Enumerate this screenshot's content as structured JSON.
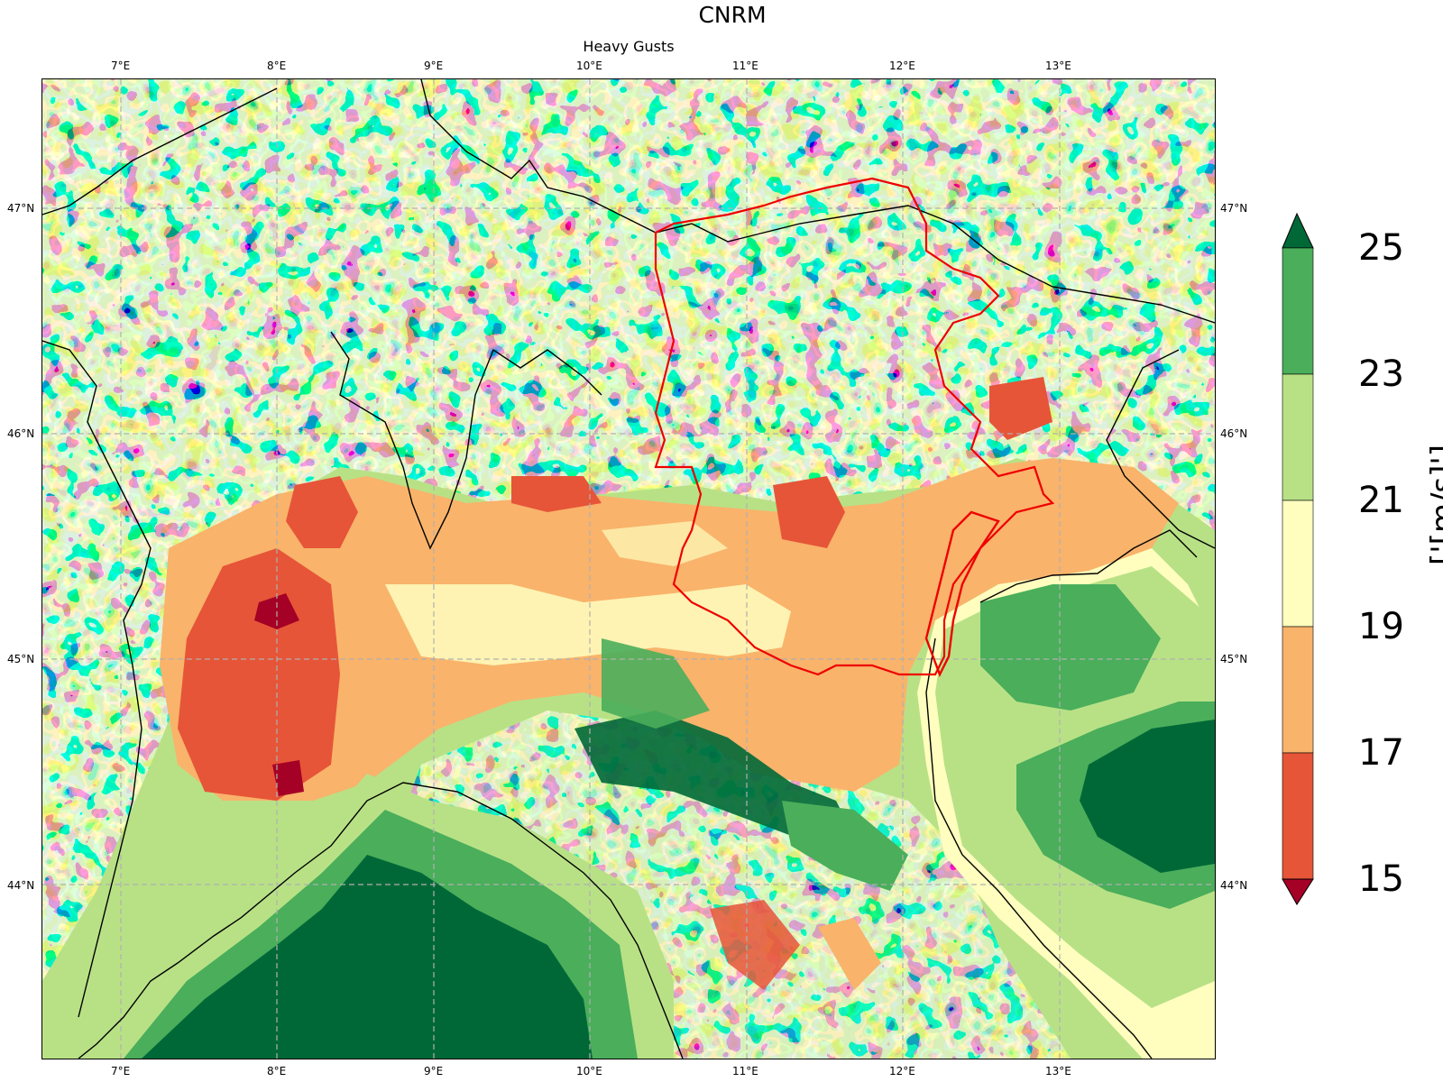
{
  "title": "CNRM",
  "subtitle": "Heavy Gusts",
  "x_ticks": [
    "7°E",
    "8°E",
    "9°E",
    "10°E",
    "11°E",
    "12°E",
    "13°E"
  ],
  "y_ticks": [
    "47°N",
    "46°N",
    "45°N",
    "44°N"
  ],
  "extent": {
    "lon": [
      6.5,
      14.0
    ],
    "lat": [
      43.3,
      47.6
    ]
  },
  "colorbar": {
    "label": "['[m/s]']",
    "ticks": [
      "15",
      "17",
      "19",
      "21",
      "23",
      "25"
    ],
    "bins": [
      {
        "range": [
          15,
          17
        ],
        "color": "#e65538"
      },
      {
        "range": [
          17,
          19
        ],
        "color": "#f9b36b"
      },
      {
        "range": [
          19,
          21
        ],
        "color": "#fffebe"
      },
      {
        "range": [
          21,
          23
        ],
        "color": "#b8e186"
      },
      {
        "range": [
          23,
          25
        ],
        "color": "#4aae5b"
      }
    ],
    "under_color": "#a50026",
    "over_color": "#006837"
  },
  "gridline_color": "#b0b0b0",
  "region_outline_color": "#ee0000"
}
